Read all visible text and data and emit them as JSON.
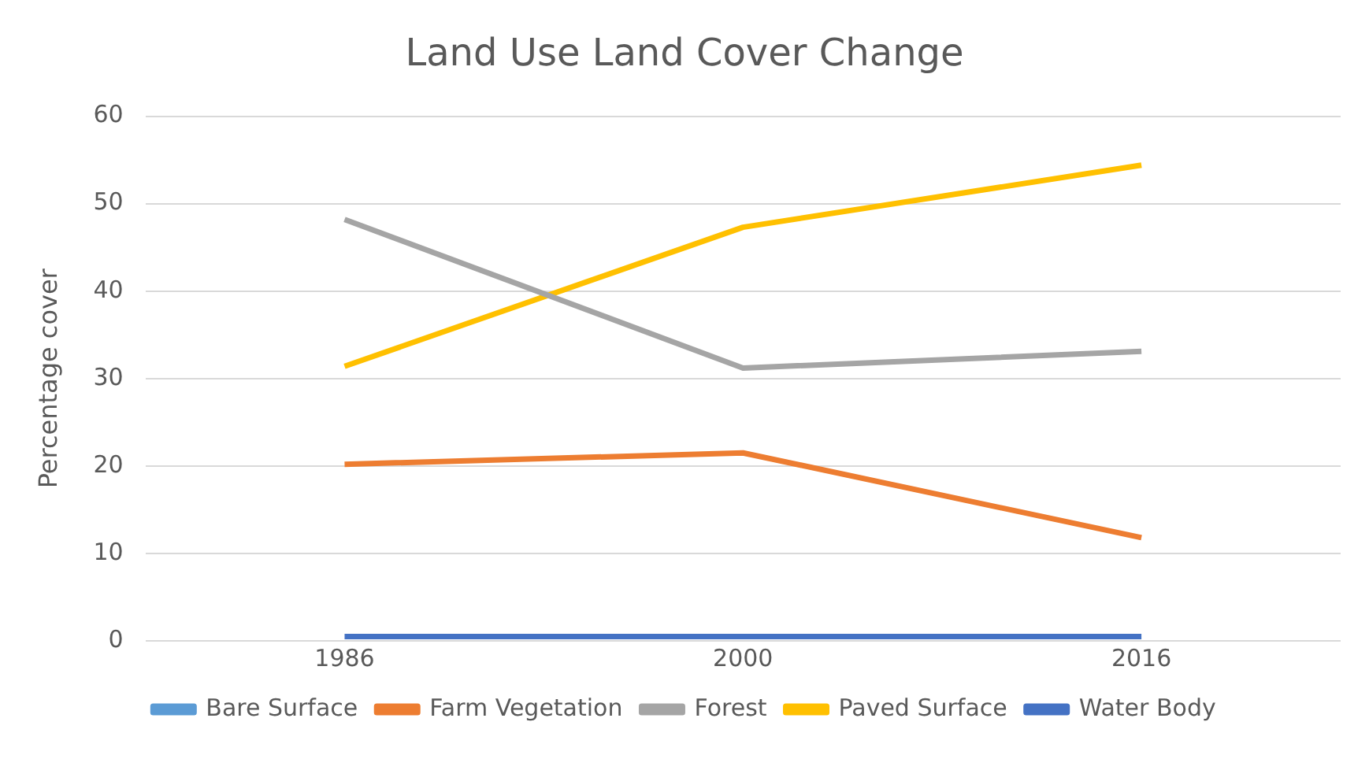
{
  "chart_data": {
    "type": "line",
    "title": "Land Use Land Cover Change",
    "ylabel": "Percentage cover",
    "categories": [
      "1986",
      "2000",
      "2016"
    ],
    "series": [
      {
        "name": "Bare Surface",
        "color": "#5b9bd5",
        "values": [
          null,
          null,
          null
        ]
      },
      {
        "name": "Farm Vegetation",
        "color": "#ed7d31",
        "values": [
          20.2,
          21.5,
          11.8
        ]
      },
      {
        "name": "Forest",
        "color": "#a5a5a5",
        "values": [
          48.2,
          31.2,
          33.1
        ]
      },
      {
        "name": "Paved Surface",
        "color": "#ffc000",
        "values": [
          31.4,
          47.3,
          54.4
        ]
      },
      {
        "name": "Water Body",
        "color": "#4472c4",
        "values": [
          0.5,
          0.5,
          0.5
        ]
      }
    ],
    "ylim": [
      0,
      60
    ],
    "yticks": [
      0,
      10,
      20,
      30,
      40,
      50,
      60
    ],
    "grid": "y",
    "legend": "bottom",
    "marker": "none",
    "line_style": "solid"
  }
}
